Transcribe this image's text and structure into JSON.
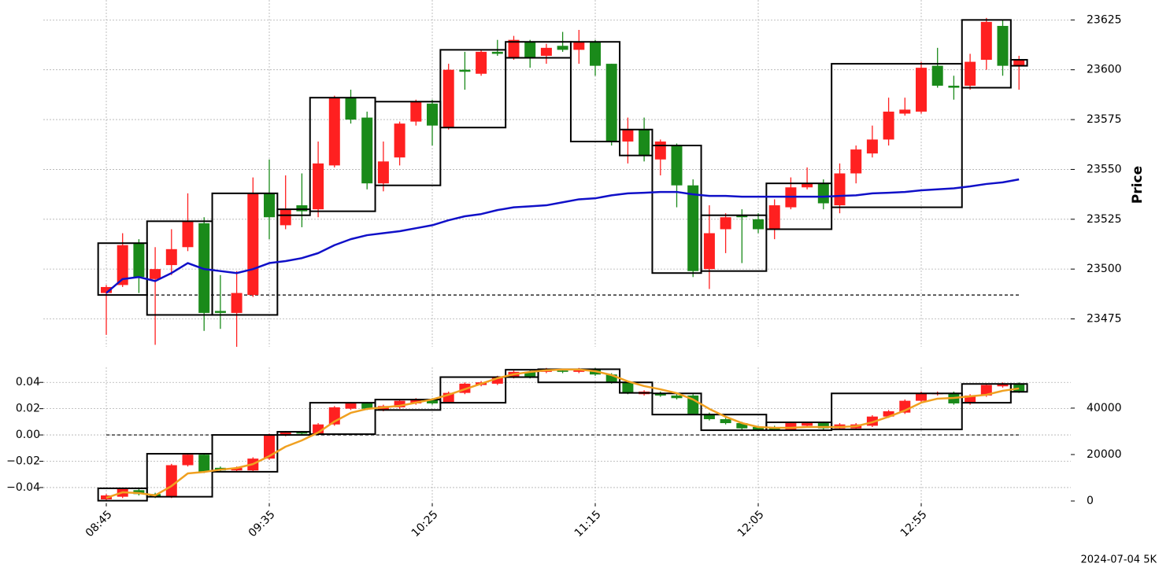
{
  "chart_data": [
    {
      "type": "candlestick",
      "y_label": "Price",
      "y_axis_side": "right",
      "grid": true,
      "up_color": "#ff2020",
      "down_color": "#1a8a1a",
      "ylim": [
        23461,
        23635
      ],
      "yticks": [
        23475,
        23500,
        23525,
        23550,
        23575,
        23600,
        23625
      ],
      "open": [
        23488,
        23492,
        23513,
        23495,
        23502,
        23511,
        23523,
        23479,
        23478,
        23487,
        23538,
        23522,
        23532,
        23530,
        23552,
        23586,
        23576,
        23543,
        23556,
        23574,
        23583,
        23571,
        23600,
        23598,
        23609,
        23606,
        23614,
        23607,
        23612,
        23610,
        23614,
        23603,
        23564,
        23570,
        23555,
        23562,
        23542,
        23500,
        23520,
        23527,
        23525,
        23520,
        23531,
        23541,
        23543,
        23532,
        23548,
        23558,
        23565,
        23578,
        23579,
        23602,
        23592,
        23592,
        23605,
        23622,
        23602
      ],
      "high": [
        23492,
        23518,
        23515,
        23511,
        23520,
        23538,
        23526,
        23497,
        23499,
        23546,
        23555,
        23547,
        23548,
        23564,
        23587,
        23590,
        23579,
        23564,
        23574,
        23585,
        23585,
        23603,
        23609,
        23610,
        23615,
        23617,
        23615,
        23613,
        23619,
        23620,
        23615,
        23603,
        23576,
        23576,
        23565,
        23563,
        23545,
        23532,
        23528,
        23530,
        23528,
        23535,
        23546,
        23551,
        23545,
        23553,
        23562,
        23572,
        23586,
        23586,
        23604,
        23611,
        23597,
        23608,
        23626,
        23625,
        23607
      ],
      "low": [
        23467,
        23491,
        23488,
        23462,
        23497,
        23509,
        23469,
        23470,
        23461,
        23486,
        23515,
        23520,
        23521,
        23526,
        23551,
        23573,
        23540,
        23539,
        23552,
        23572,
        23562,
        23570,
        23590,
        23597,
        23607,
        23605,
        23601,
        23603,
        23609,
        23603,
        23597,
        23562,
        23553,
        23554,
        23547,
        23531,
        23496,
        23490,
        23508,
        23503,
        23518,
        23515,
        23530,
        23540,
        23530,
        23528,
        23543,
        23556,
        23562,
        23577,
        23578,
        23591,
        23585,
        23590,
        23600,
        23597,
        23590
      ],
      "close": [
        23491,
        23512,
        23496,
        23500,
        23510,
        23524,
        23478,
        23478,
        23488,
        23538,
        23526,
        23530,
        23529,
        23553,
        23586,
        23575,
        23543,
        23554,
        23573,
        23584,
        23572,
        23600,
        23599,
        23609,
        23608,
        23615,
        23606,
        23611,
        23610,
        23614,
        23602,
        23564,
        23570,
        23557,
        23564,
        23542,
        23499,
        23518,
        23526,
        23526,
        23520,
        23532,
        23541,
        23543,
        23533,
        23548,
        23560,
        23565,
        23579,
        23580,
        23601,
        23592,
        23591,
        23604,
        23624,
        23602,
        23605
      ],
      "line": {
        "color": "#1010c8",
        "values": [
          23488,
          23495,
          23496,
          23494,
          23498,
          23503,
          23500,
          23499,
          23498,
          23500,
          23503,
          23504,
          23505.5,
          23508,
          23512,
          23515,
          23517,
          23518,
          23519,
          23520.5,
          23522,
          23524.5,
          23526.5,
          23527.6,
          23529.6,
          23531,
          23531.5,
          23532,
          23533.5,
          23535,
          23535.5,
          23537,
          23538,
          23538.3,
          23538.7,
          23538.7,
          23537.5,
          23536.7,
          23536.7,
          23536.3,
          23536.3,
          23536.3,
          23536.3,
          23536.3,
          23536.3,
          23536.7,
          23537,
          23538,
          23538.3,
          23538.7,
          23539.5,
          23540,
          23540.5,
          23541.5,
          23542.7,
          23543.5,
          23545
        ]
      },
      "hline": 23487,
      "boxes": [
        {
          "start": 0,
          "end": 2,
          "low": 23487,
          "high": 23513
        },
        {
          "start": 3,
          "end": 6,
          "low": 23477,
          "high": 23524
        },
        {
          "start": 7,
          "end": 10,
          "low": 23477,
          "high": 23538
        },
        {
          "start": 11,
          "end": 12,
          "low": 23527,
          "high": 23530
        },
        {
          "start": 13,
          "end": 16,
          "low": 23529,
          "high": 23586
        },
        {
          "start": 17,
          "end": 20,
          "low": 23542,
          "high": 23584
        },
        {
          "start": 21,
          "end": 24,
          "low": 23571,
          "high": 23610
        },
        {
          "start": 25,
          "end": 28,
          "low": 23606,
          "high": 23614
        },
        {
          "start": 29,
          "end": 31,
          "low": 23564,
          "high": 23614
        },
        {
          "start": 32,
          "end": 33,
          "low": 23557,
          "high": 23570
        },
        {
          "start": 34,
          "end": 36,
          "low": 23498,
          "high": 23562
        },
        {
          "start": 37,
          "end": 40,
          "low": 23499,
          "high": 23527
        },
        {
          "start": 41,
          "end": 44,
          "low": 23520,
          "high": 23543
        },
        {
          "start": 45,
          "end": 52,
          "low": 23531,
          "high": 23603
        },
        {
          "start": 53,
          "end": 55,
          "low": 23591,
          "high": 23625
        },
        {
          "start": 56,
          "end": 56,
          "low": 23602,
          "high": 23605
        }
      ]
    },
    {
      "type": "candlestick",
      "grid": true,
      "caption": "2024-07-04 5K",
      "up_color": "#ff2020",
      "down_color": "#1a8a1a",
      "categories": [
        "08:45",
        null,
        null,
        null,
        null,
        null,
        null,
        null,
        null,
        null,
        "09:35",
        null,
        null,
        null,
        null,
        null,
        null,
        null,
        null,
        null,
        "10:25",
        null,
        null,
        null,
        null,
        null,
        null,
        null,
        null,
        null,
        "11:15",
        null,
        null,
        null,
        null,
        null,
        null,
        null,
        null,
        null,
        "12:05",
        null,
        null,
        null,
        null,
        null,
        null,
        null,
        null,
        null,
        "12:55",
        null,
        null,
        null,
        null,
        null,
        null
      ],
      "ylim": [
        -0.052,
        0.0515
      ],
      "yticks": [
        {
          "value": -0.04,
          "label": "−0.04"
        },
        {
          "value": -0.02,
          "label": "−0.02"
        },
        {
          "value": 0,
          "label": "0.00"
        },
        0.02,
        0.04
      ],
      "y2lim": [
        -1000,
        57600
      ],
      "y2ticks": [
        0,
        20000,
        40000
      ],
      "open": [
        -0.049,
        -0.047,
        -0.042,
        -0.045,
        -0.047,
        -0.023,
        -0.015,
        -0.025,
        -0.027,
        -0.027,
        -0.018,
        0.0,
        0.002,
        0.001,
        0.008,
        0.02,
        0.024,
        0.019,
        0.021,
        0.024,
        0.027,
        0.025,
        0.032,
        0.038,
        0.039,
        0.044,
        0.048,
        0.048,
        0.049,
        0.048,
        0.05,
        0.046,
        0.04,
        0.031,
        0.032,
        0.03,
        0.03,
        0.016,
        0.012,
        0.009,
        0.006,
        0.006,
        0.004,
        0.007,
        0.009,
        0.005,
        0.005,
        0.007,
        0.014,
        0.017,
        0.026,
        0.031,
        0.032,
        0.024,
        0.03,
        0.037,
        0.039
      ],
      "high": [
        -0.045,
        -0.04,
        -0.041,
        -0.044,
        -0.022,
        -0.014,
        -0.014,
        -0.024,
        -0.024,
        -0.017,
        0.001,
        0.003,
        0.003,
        0.009,
        0.022,
        0.025,
        0.025,
        0.023,
        0.027,
        0.028,
        0.028,
        0.033,
        0.04,
        0.041,
        0.045,
        0.049,
        0.049,
        0.051,
        0.05,
        0.051,
        0.051,
        0.047,
        0.041,
        0.034,
        0.033,
        0.031,
        0.031,
        0.017,
        0.013,
        0.01,
        0.007,
        0.007,
        0.01,
        0.01,
        0.01,
        0.009,
        0.009,
        0.015,
        0.019,
        0.027,
        0.033,
        0.033,
        0.033,
        0.031,
        0.039,
        0.04,
        0.04
      ],
      "low": [
        -0.05,
        -0.048,
        -0.046,
        -0.048,
        -0.048,
        -0.024,
        -0.029,
        -0.028,
        -0.028,
        -0.028,
        -0.019,
        -0.001,
        0.0,
        0.0,
        0.007,
        0.019,
        0.019,
        0.018,
        0.02,
        0.023,
        0.023,
        0.024,
        0.031,
        0.037,
        0.038,
        0.043,
        0.043,
        0.047,
        0.047,
        0.047,
        0.045,
        0.039,
        0.031,
        0.03,
        0.029,
        0.027,
        0.015,
        0.011,
        0.008,
        0.004,
        0.003,
        0.003,
        0.003,
        0.006,
        0.004,
        0.004,
        0.004,
        0.006,
        0.013,
        0.016,
        0.025,
        0.03,
        0.023,
        0.023,
        0.029,
        0.036,
        0.032
      ],
      "close": [
        -0.046,
        -0.041,
        -0.045,
        -0.047,
        -0.023,
        -0.015,
        -0.028,
        -0.027,
        -0.025,
        -0.018,
        0.0,
        0.002,
        0.001,
        0.008,
        0.021,
        0.024,
        0.02,
        0.022,
        0.026,
        0.027,
        0.024,
        0.032,
        0.039,
        0.04,
        0.044,
        0.048,
        0.044,
        0.05,
        0.048,
        0.05,
        0.046,
        0.04,
        0.032,
        0.033,
        0.03,
        0.028,
        0.016,
        0.012,
        0.009,
        0.005,
        0.004,
        0.004,
        0.009,
        0.009,
        0.005,
        0.008,
        0.008,
        0.014,
        0.018,
        0.026,
        0.032,
        0.032,
        0.024,
        0.03,
        0.038,
        0.039,
        0.033
      ],
      "line": {
        "color": "#f0a020",
        "axis": "y2",
        "values": [
          1356,
          3729,
          3400,
          2400,
          6440,
          11864,
          12500,
          13500,
          14200,
          15900,
          19322,
          23390,
          26100,
          29490,
          34240,
          37966,
          39660,
          40340,
          41000,
          42370,
          43730,
          45760,
          48136,
          50508,
          52880,
          54576,
          55593,
          56270,
          56610,
          56610,
          55900,
          54237,
          51525,
          49491,
          48100,
          46440,
          43730,
          39660,
          36271,
          33559,
          31864,
          31500,
          31500,
          31864,
          31864,
          31864,
          32200,
          33900,
          36271,
          38983,
          42373,
          44068,
          44407,
          45085,
          45763,
          47458,
          48475
        ]
      },
      "hline": 0,
      "boxes": [
        {
          "start": 0,
          "end": 2,
          "low": -0.05,
          "high": -0.0406
        },
        {
          "start": 3,
          "end": 6,
          "low": -0.047,
          "high": -0.0143
        },
        {
          "start": 7,
          "end": 10,
          "low": -0.028,
          "high": 0
        },
        {
          "start": 11,
          "end": 12,
          "low": 0,
          "high": 0.0024
        },
        {
          "start": 13,
          "end": 16,
          "low": 0.0006,
          "high": 0.0245
        },
        {
          "start": 17,
          "end": 20,
          "low": 0.019,
          "high": 0.0269
        },
        {
          "start": 21,
          "end": 24,
          "low": 0.0245,
          "high": 0.044
        },
        {
          "start": 25,
          "end": 26,
          "low": 0.044,
          "high": 0.0496
        },
        {
          "start": 27,
          "end": 31,
          "low": 0.04,
          "high": 0.05
        },
        {
          "start": 32,
          "end": 33,
          "low": 0.032,
          "high": 0.04
        },
        {
          "start": 34,
          "end": 36,
          "low": 0.0155,
          "high": 0.0316
        },
        {
          "start": 37,
          "end": 40,
          "low": 0.0036,
          "high": 0.0155
        },
        {
          "start": 41,
          "end": 44,
          "low": 0.0036,
          "high": 0.0096
        },
        {
          "start": 45,
          "end": 52,
          "low": 0.0042,
          "high": 0.0316
        },
        {
          "start": 53,
          "end": 55,
          "low": 0.0245,
          "high": 0.0388
        },
        {
          "start": 56,
          "end": 56,
          "low": 0.0328,
          "high": 0.0388
        }
      ]
    }
  ]
}
